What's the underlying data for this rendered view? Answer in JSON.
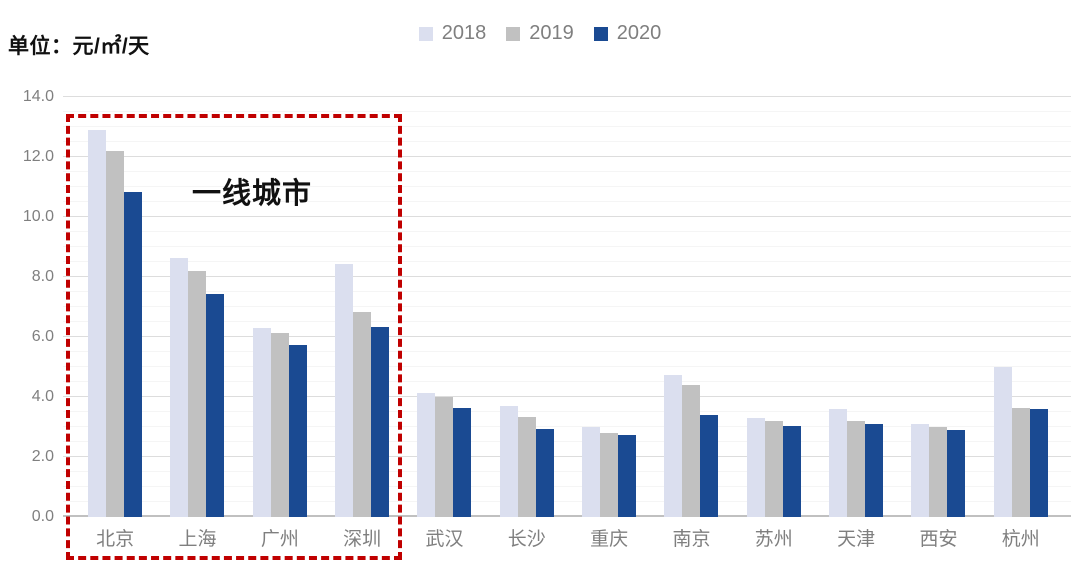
{
  "title": "单位：元/㎡/天",
  "annotation": "一线城市",
  "colors": {
    "series_2018": "#dbdfef",
    "series_2019": "#c1c1c1",
    "series_2020": "#1a4a92",
    "highlight_box": "#c00000",
    "axis_text": "#7f7f7f",
    "major_grid": "#dddddd",
    "minor_grid": "#f5f5f5"
  },
  "chart_data": {
    "type": "bar",
    "title": "单位：元/㎡/天",
    "ylabel": "元/㎡/天",
    "xlabel": "",
    "categories": [
      "北京",
      "上海",
      "广州",
      "深圳",
      "武汉",
      "长沙",
      "重庆",
      "南京",
      "苏州",
      "天津",
      "西安",
      "杭州"
    ],
    "series": [
      {
        "name": "2018",
        "color": "#dbdfef",
        "values": [
          12.9,
          8.65,
          6.3,
          8.45,
          4.15,
          3.7,
          3.0,
          4.75,
          3.3,
          3.6,
          3.1,
          5.0
        ]
      },
      {
        "name": "2019",
        "color": "#c1c1c1",
        "values": [
          12.2,
          8.2,
          6.15,
          6.85,
          4.0,
          3.35,
          2.8,
          4.4,
          3.2,
          3.2,
          3.0,
          3.65
        ]
      },
      {
        "name": "2020",
        "color": "#1a4a92",
        "values": [
          10.85,
          7.45,
          5.75,
          6.35,
          3.65,
          2.95,
          2.75,
          3.4,
          3.05,
          3.1,
          2.9,
          3.6
        ]
      }
    ],
    "ylim": [
      0,
      14
    ],
    "ytick_step": 2,
    "minor_tick_step": 0.5,
    "yticks": [
      "0.0",
      "2.0",
      "4.0",
      "6.0",
      "8.0",
      "10.0",
      "12.0",
      "14.0"
    ],
    "grid": "horizontal major+minor",
    "legend_position": "top-center",
    "annotation": {
      "text": "一线城市",
      "box_categories": [
        "北京",
        "上海",
        "广州",
        "深圳"
      ]
    }
  }
}
